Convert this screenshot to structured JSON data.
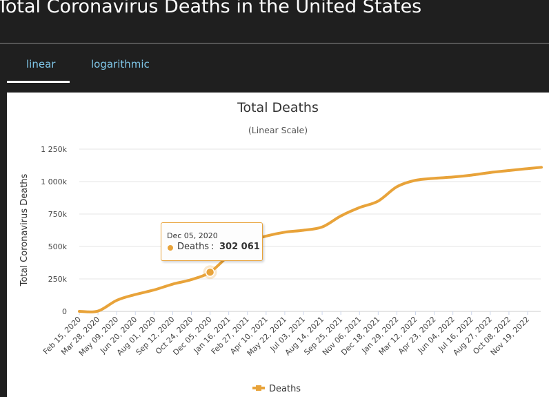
{
  "page": {
    "title": "Total Coronavirus Deaths in the United States"
  },
  "tabs": [
    {
      "label": "linear",
      "active": true
    },
    {
      "label": "logarithmic",
      "active": false
    }
  ],
  "colors": {
    "accent": "#e8a33a",
    "tab_text": "#7fc6e8",
    "page_bg": "#1f1f1f"
  },
  "chart_data": {
    "type": "line",
    "title": "Total Deaths",
    "subtitle": "(Linear Scale)",
    "ylabel": "Total Coronavirus Deaths",
    "xlabel": "",
    "ylim": [
      0,
      1250000
    ],
    "yticks": [
      0,
      250000,
      500000,
      750000,
      1000000,
      1250000
    ],
    "ytick_labels": [
      "0",
      "250k",
      "500k",
      "750k",
      "1 000k",
      "1 250k"
    ],
    "xtick_labels": [
      "Feb 15, 2020",
      "Mar 28, 2020",
      "May 09, 2020",
      "Jun 20, 2020",
      "Aug 01, 2020",
      "Sep 12, 2020",
      "Oct 24, 2020",
      "Dec 05, 2020",
      "Jan 16, 2021",
      "Feb 27, 2021",
      "Apr 10, 2021",
      "May 22, 2021",
      "Jul 03, 2021",
      "Aug 14, 2021",
      "Sep 25, 2021",
      "Nov 06, 2021",
      "Dec 18, 2021",
      "Jan 29, 2022",
      "Mar 12, 2022",
      "Apr 23, 2022",
      "Jun 04, 2022",
      "Jul 16, 2022",
      "Aug 27, 2022",
      "Oct 08, 2022",
      "Nov 19, 2022"
    ],
    "grid": true,
    "legend": "bottom",
    "series": [
      {
        "name": "Deaths",
        "color": "#e8a33a",
        "x": [
          "Feb 15, 2020",
          "Mar 28, 2020",
          "May 09, 2020",
          "Jun 20, 2020",
          "Aug 01, 2020",
          "Sep 12, 2020",
          "Oct 24, 2020",
          "Dec 05, 2020",
          "Jan 16, 2021",
          "Feb 27, 2021",
          "Apr 10, 2021",
          "May 22, 2021",
          "Jul 03, 2021",
          "Aug 14, 2021",
          "Sep 25, 2021",
          "Nov 06, 2021",
          "Dec 18, 2021",
          "Jan 29, 2022",
          "Mar 12, 2022",
          "Apr 23, 2022",
          "Jun 04, 2022",
          "Jul 16, 2022",
          "Aug 27, 2022",
          "Oct 08, 2022",
          "Nov 19, 2022",
          "Dec 20, 2022"
        ],
        "values": [
          0,
          2500,
          85000,
          130000,
          165000,
          210000,
          245000,
          302061,
          430000,
          535000,
          580000,
          610000,
          625000,
          650000,
          735000,
          800000,
          850000,
          960000,
          1010000,
          1025000,
          1035000,
          1050000,
          1070000,
          1085000,
          1100000,
          1110000
        ]
      }
    ],
    "highlight": {
      "x": "Dec 05, 2020",
      "label": "Deaths",
      "value": 302061,
      "value_text": "302 061"
    }
  }
}
